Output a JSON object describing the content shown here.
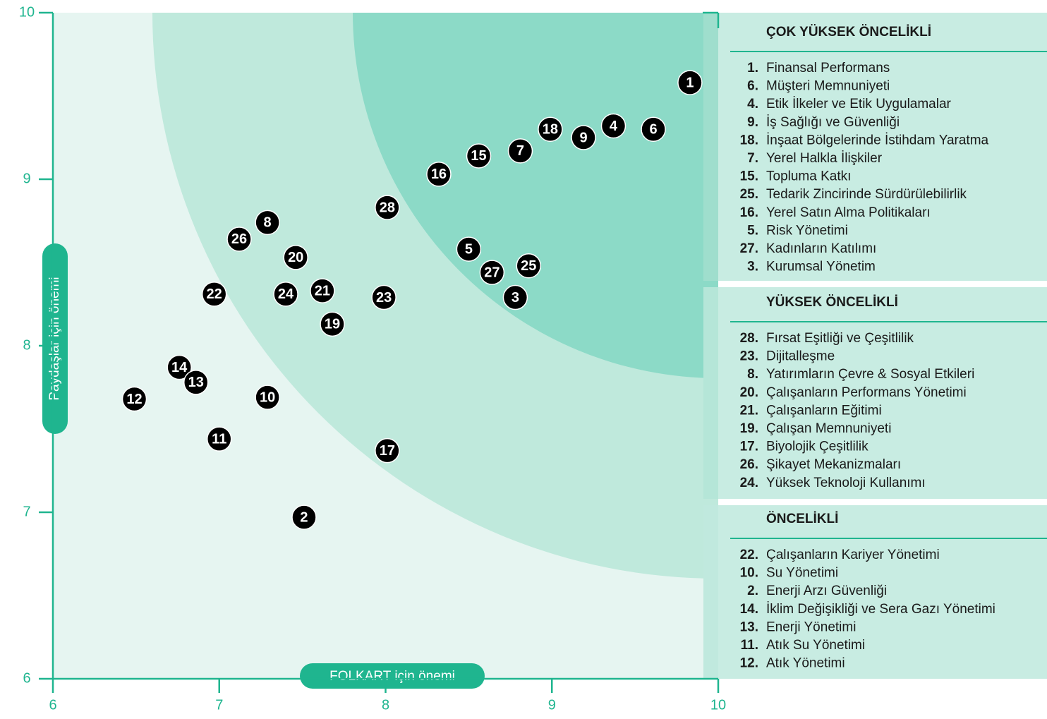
{
  "chart_data": {
    "type": "scatter",
    "x_label": "FOLKART için önemi",
    "y_label": "Paydaşlar için önemi",
    "xlim": [
      6,
      10
    ],
    "ylim": [
      6,
      10
    ],
    "xticks": [
      6,
      7,
      8,
      9,
      10
    ],
    "yticks": [
      6,
      7,
      8,
      9,
      10
    ],
    "color": "#000000",
    "axis_color": "#1fb58f",
    "points": [
      {
        "label": "1",
        "x": 9.83,
        "y": 9.58
      },
      {
        "label": "6",
        "x": 9.61,
        "y": 9.3
      },
      {
        "label": "4",
        "x": 9.37,
        "y": 9.32
      },
      {
        "label": "9",
        "x": 9.19,
        "y": 9.25
      },
      {
        "label": "18",
        "x": 8.99,
        "y": 9.3
      },
      {
        "label": "7",
        "x": 8.81,
        "y": 9.17
      },
      {
        "label": "15",
        "x": 8.56,
        "y": 9.14
      },
      {
        "label": "16",
        "x": 8.32,
        "y": 9.03
      },
      {
        "label": "28",
        "x": 8.01,
        "y": 8.83
      },
      {
        "label": "5",
        "x": 8.5,
        "y": 8.58
      },
      {
        "label": "27",
        "x": 8.64,
        "y": 8.44
      },
      {
        "label": "25",
        "x": 8.86,
        "y": 8.48
      },
      {
        "label": "3",
        "x": 8.78,
        "y": 8.29
      },
      {
        "label": "8",
        "x": 7.29,
        "y": 8.74
      },
      {
        "label": "26",
        "x": 7.12,
        "y": 8.64
      },
      {
        "label": "20",
        "x": 7.46,
        "y": 8.53
      },
      {
        "label": "22",
        "x": 6.97,
        "y": 8.31
      },
      {
        "label": "24",
        "x": 7.4,
        "y": 8.31
      },
      {
        "label": "21",
        "x": 7.62,
        "y": 8.33
      },
      {
        "label": "23",
        "x": 7.99,
        "y": 8.29
      },
      {
        "label": "19",
        "x": 7.68,
        "y": 8.13
      },
      {
        "label": "14",
        "x": 6.76,
        "y": 7.87
      },
      {
        "label": "13",
        "x": 6.86,
        "y": 7.78
      },
      {
        "label": "12",
        "x": 6.49,
        "y": 7.68
      },
      {
        "label": "10",
        "x": 7.29,
        "y": 7.69
      },
      {
        "label": "11",
        "x": 7.0,
        "y": 7.44
      },
      {
        "label": "17",
        "x": 8.01,
        "y": 7.37
      },
      {
        "label": "2",
        "x": 7.51,
        "y": 6.97
      }
    ],
    "groups": [
      {
        "title": "ÇOK YÜKSEK ÖNCELİKLİ",
        "items": [
          {
            "num": "1.",
            "text": "Finansal Performans"
          },
          {
            "num": "6.",
            "text": "Müşteri Memnuniyeti"
          },
          {
            "num": "4.",
            "text": "Etik İlkeler ve Etik Uygulamalar"
          },
          {
            "num": "9.",
            "text": "İş Sağlığı ve Güvenliği"
          },
          {
            "num": "18.",
            "text": "İnşaat Bölgelerinde İstihdam Yaratma"
          },
          {
            "num": "7.",
            "text": "Yerel Halkla İlişkiler"
          },
          {
            "num": "15.",
            "text": "Topluma Katkı"
          },
          {
            "num": "25.",
            "text": "Tedarik Zincirinde Sürdürülebilirlik"
          },
          {
            "num": "16.",
            "text": "Yerel Satın Alma Politikaları"
          },
          {
            "num": "5.",
            "text": "Risk Yönetimi"
          },
          {
            "num": "27.",
            "text": "Kadınların Katılımı"
          },
          {
            "num": "3.",
            "text": "Kurumsal Yönetim"
          }
        ]
      },
      {
        "title": "YÜKSEK ÖNCELİKLİ",
        "items": [
          {
            "num": "28.",
            "text": "Fırsat Eşitliği ve Çeşitlilik"
          },
          {
            "num": "23.",
            "text": "Dijitalleşme"
          },
          {
            "num": "8.",
            "text": "Yatırımların Çevre & Sosyal Etkileri"
          },
          {
            "num": "20.",
            "text": "Çalışanların Performans Yönetimi"
          },
          {
            "num": "21.",
            "text": "Çalışanların Eğitimi"
          },
          {
            "num": "19.",
            "text": "Çalışan Memnuniyeti"
          },
          {
            "num": "17.",
            "text": "Biyolojik Çeşitlilik"
          },
          {
            "num": "26.",
            "text": "Şikayet Mekanizmaları"
          },
          {
            "num": "24.",
            "text": "Yüksek Teknoloji Kullanımı"
          }
        ]
      },
      {
        "title": "ÖNCELİKLİ",
        "items": [
          {
            "num": "22.",
            "text": "Çalışanların Kariyer Yönetimi"
          },
          {
            "num": "10.",
            "text": "Su Yönetimi"
          },
          {
            "num": "2.",
            "text": "Enerji Arzı Güvenliği"
          },
          {
            "num": "14.",
            "text": "İklim Değişikliği ve Sera Gazı Yönetimi"
          },
          {
            "num": "13.",
            "text": "Enerji Yönetimi"
          },
          {
            "num": "11.",
            "text": "Atık Su Yönetimi"
          },
          {
            "num": "12.",
            "text": "Atık Yönetimi"
          }
        ]
      }
    ]
  }
}
